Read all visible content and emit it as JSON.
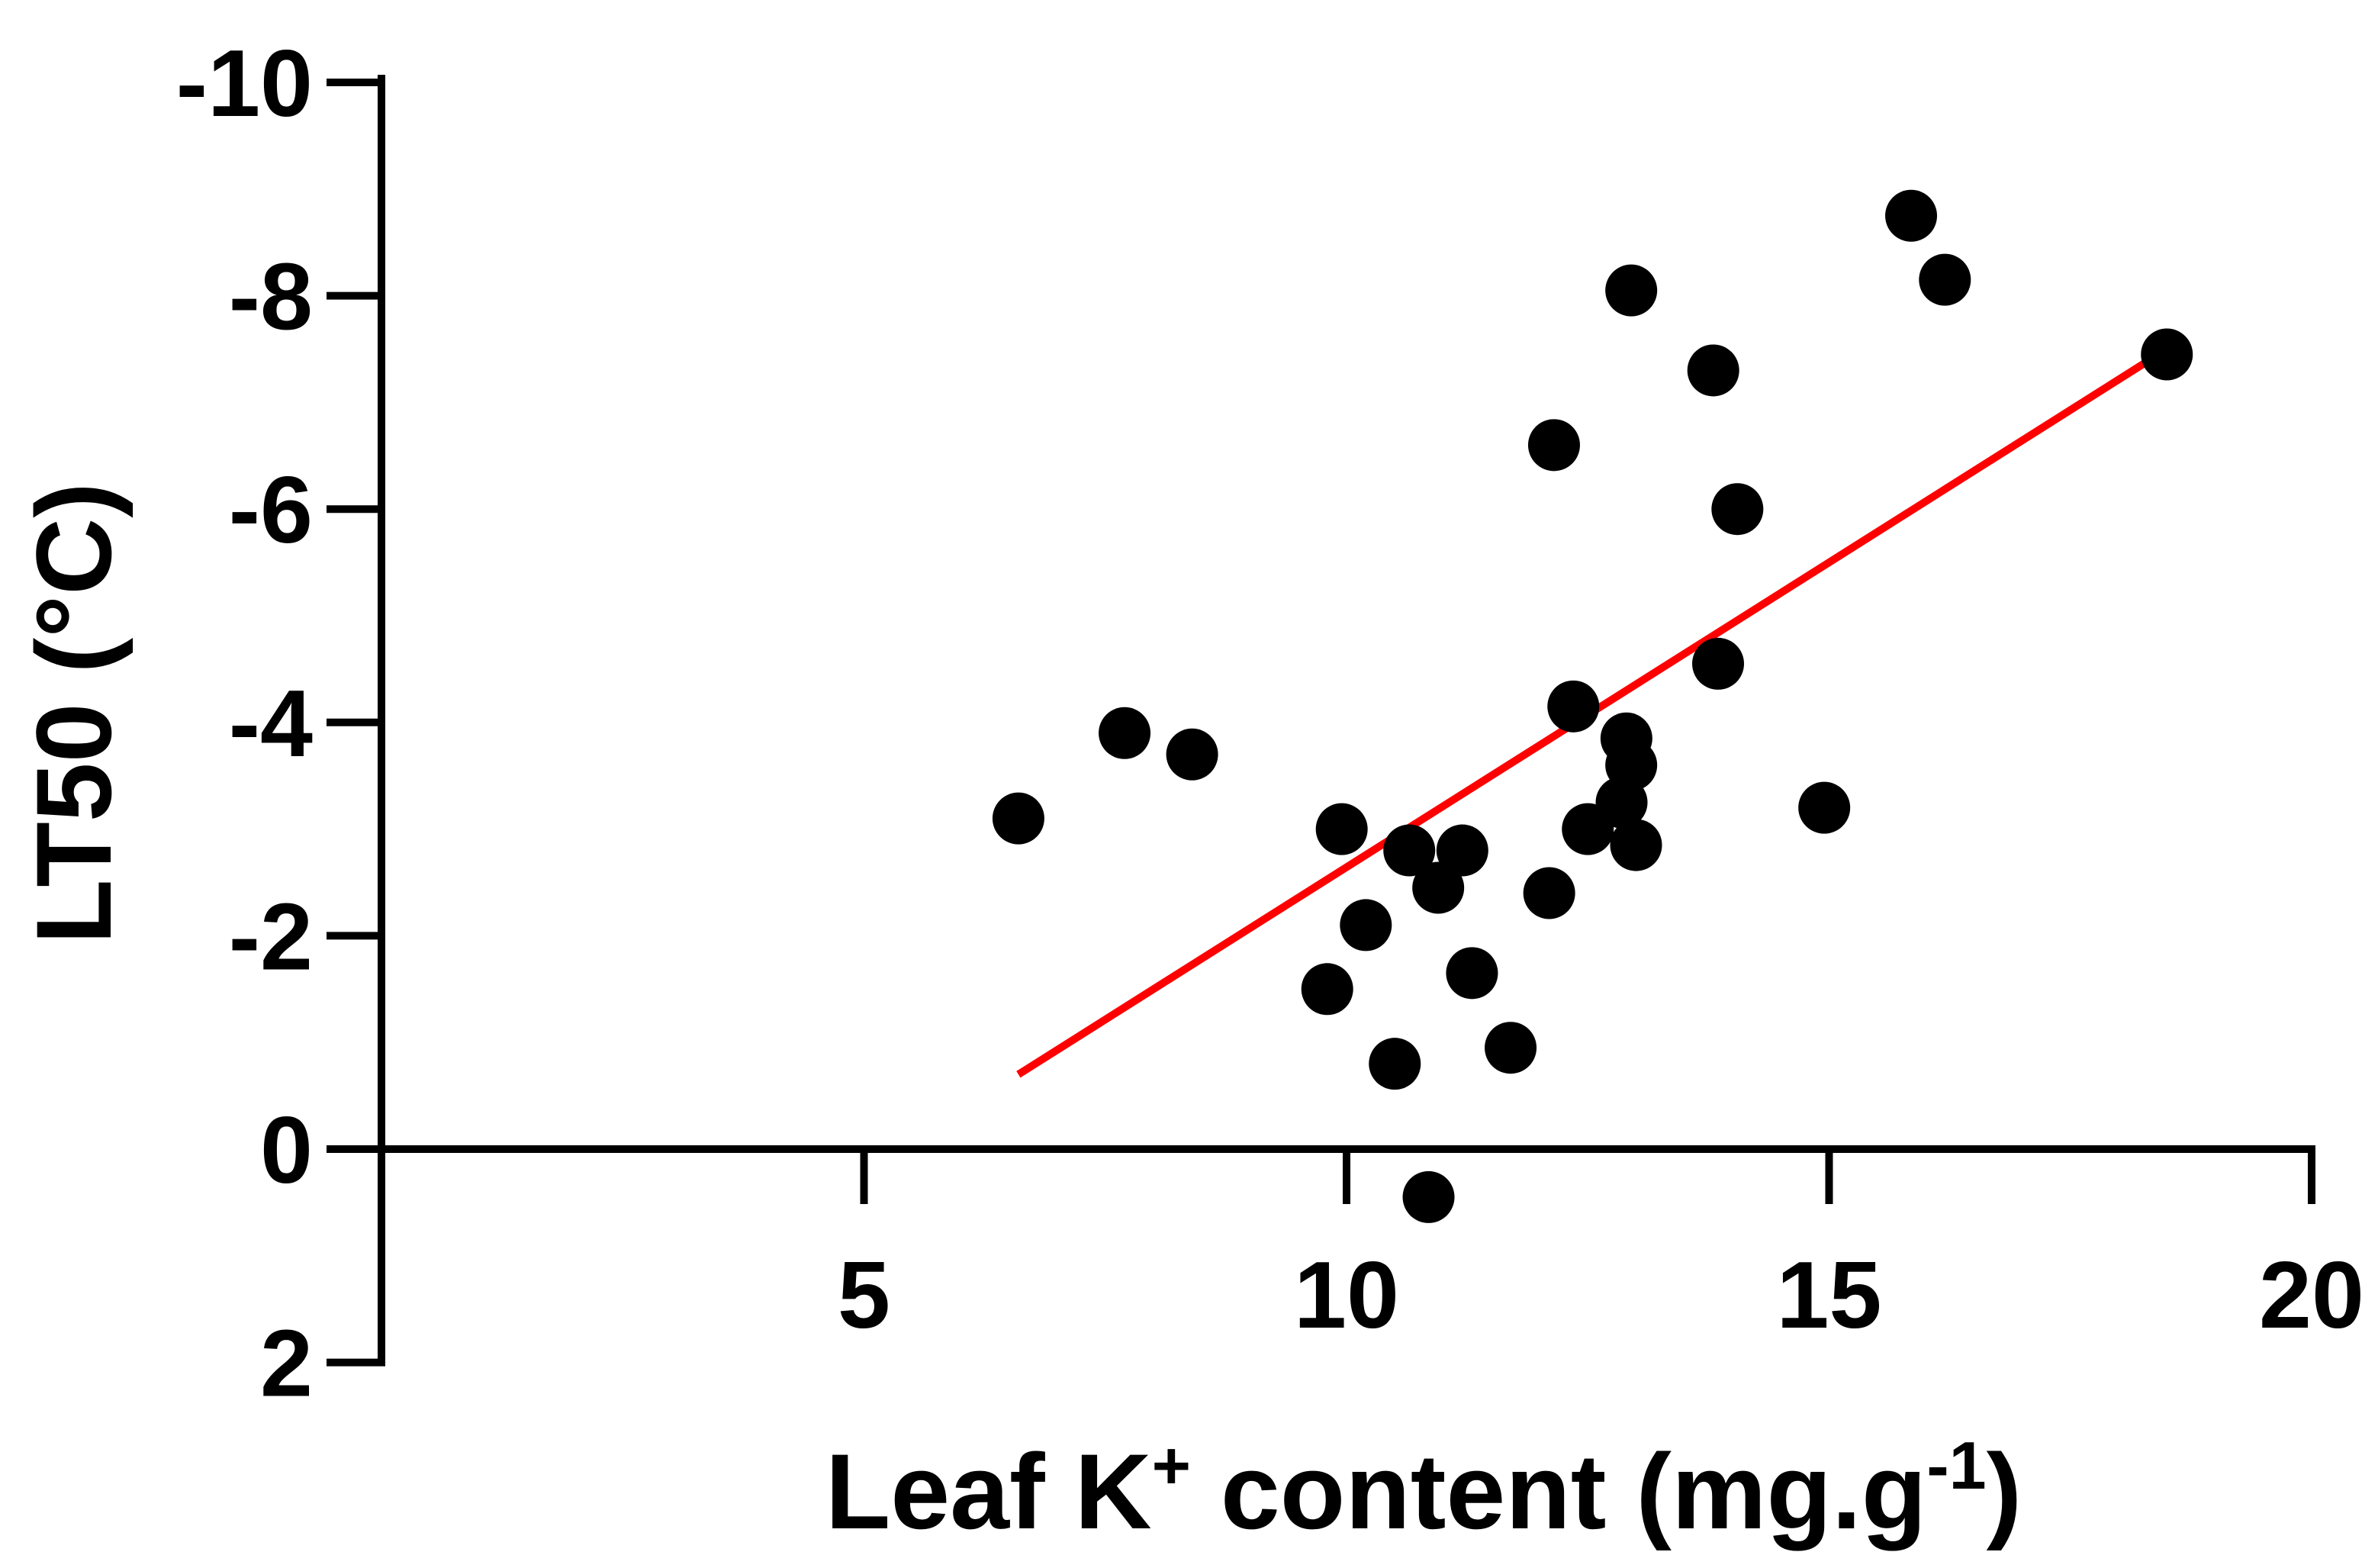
{
  "chart_data": {
    "type": "scatter",
    "title": "",
    "xlabel": {
      "main": "Leaf K",
      "sup": "+",
      "after": " content (mg.g",
      "sup2": "-1",
      "end": ")"
    },
    "ylabel": "LT50 (°C)",
    "xlim": [
      0,
      20
    ],
    "ylim": [
      2,
      -10
    ],
    "y_axis_inverted": true,
    "x_ticks": [
      5,
      10,
      15,
      20
    ],
    "x_tick_labels": [
      "5",
      "10",
      "15",
      "20"
    ],
    "y_ticks": [
      -10,
      -8,
      -6,
      -4,
      -2,
      0,
      2
    ],
    "y_tick_labels": [
      "-10",
      "-8",
      "-6",
      "-4",
      "-2",
      "0",
      "2"
    ],
    "grid": false,
    "legend": "none",
    "series": [
      {
        "color": "#000000",
        "marker": "filled-circle",
        "points": [
          {
            "x": 6.6,
            "y": -3.1
          },
          {
            "x": 7.7,
            "y": -3.9
          },
          {
            "x": 8.4,
            "y": -3.7
          },
          {
            "x": 9.8,
            "y": -1.5
          },
          {
            "x": 9.95,
            "y": -3.0
          },
          {
            "x": 10.2,
            "y": -2.1
          },
          {
            "x": 10.5,
            "y": -0.8
          },
          {
            "x": 10.65,
            "y": -2.8
          },
          {
            "x": 10.85,
            "y": 0.45
          },
          {
            "x": 10.95,
            "y": -2.45
          },
          {
            "x": 11.2,
            "y": -2.8
          },
          {
            "x": 11.3,
            "y": -1.65
          },
          {
            "x": 11.7,
            "y": -0.95
          },
          {
            "x": 12.1,
            "y": -2.4
          },
          {
            "x": 12.15,
            "y": -6.6
          },
          {
            "x": 12.35,
            "y": -4.15
          },
          {
            "x": 12.5,
            "y": -3.0
          },
          {
            "x": 12.85,
            "y": -3.25
          },
          {
            "x": 12.9,
            "y": -3.85
          },
          {
            "x": 12.95,
            "y": -3.6
          },
          {
            "x": 13.0,
            "y": -2.85
          },
          {
            "x": 12.95,
            "y": -8.05
          },
          {
            "x": 13.8,
            "y": -7.3
          },
          {
            "x": 13.85,
            "y": -4.55
          },
          {
            "x": 14.05,
            "y": -6.0
          },
          {
            "x": 14.95,
            "y": -3.2
          },
          {
            "x": 15.85,
            "y": -8.75
          },
          {
            "x": 16.2,
            "y": -8.15
          },
          {
            "x": 18.5,
            "y": -7.45
          }
        ]
      }
    ],
    "trendline": {
      "color": "#ff0000",
      "x": [
        6.6,
        18.5
      ],
      "y": [
        -0.7,
        -7.5
      ]
    }
  }
}
